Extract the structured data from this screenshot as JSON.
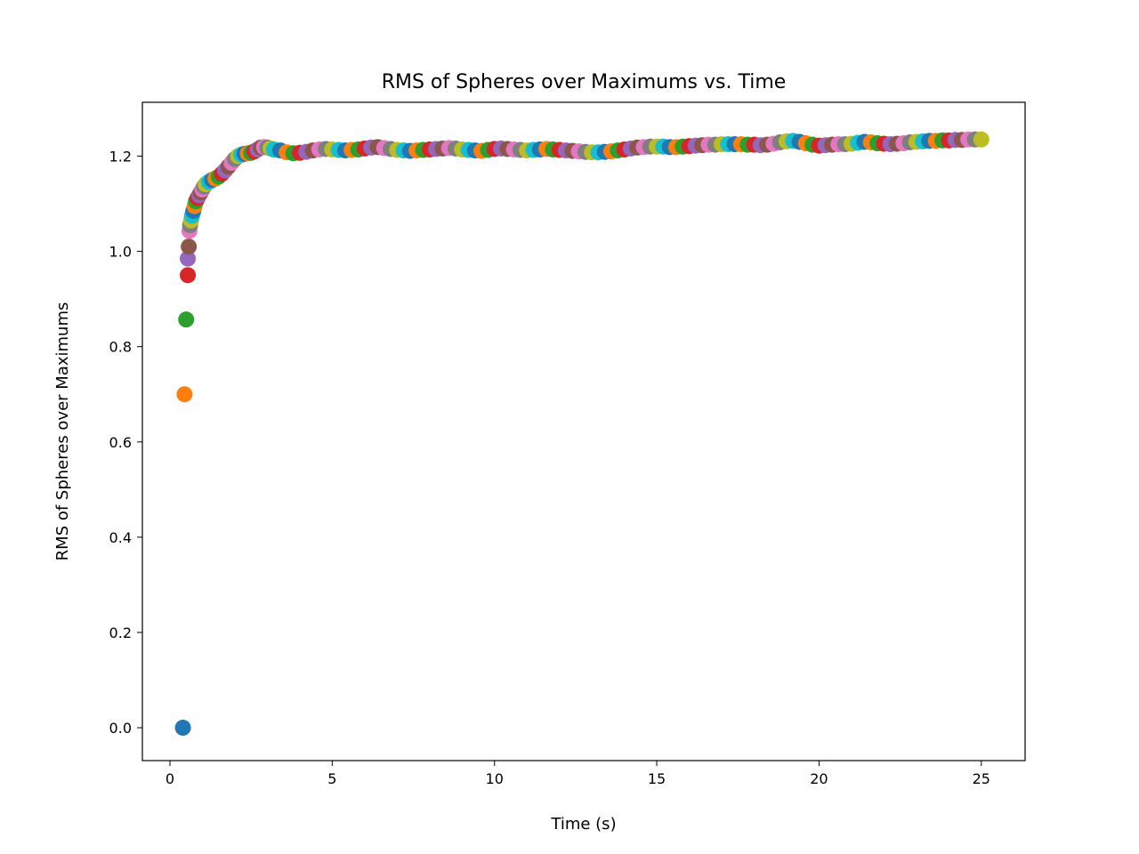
{
  "chart_data": {
    "type": "scatter",
    "title": "RMS of Spheres over Maximums vs. Time",
    "xlabel": "Time (s)",
    "ylabel": "RMS of Spheres over Maximums",
    "xlim": [
      -0.85,
      26.35
    ],
    "ylim": [
      -0.069,
      1.313
    ],
    "x_ticks": [
      0,
      5,
      10,
      15,
      20,
      25
    ],
    "x_tick_labels": [
      "0",
      "5",
      "10",
      "15",
      "20",
      "25"
    ],
    "y_ticks": [
      0.0,
      0.2,
      0.4,
      0.6,
      0.8,
      1.0,
      1.2
    ],
    "y_tick_labels": [
      "0.0",
      "0.2",
      "0.4",
      "0.6",
      "0.8",
      "1.0",
      "1.2"
    ],
    "grid": false,
    "legend": "none",
    "color_cycle": [
      "#1f77b4",
      "#ff7f0e",
      "#2ca02c",
      "#d62728",
      "#9467bd",
      "#8c564b",
      "#e377c2",
      "#7f7f7f",
      "#bcbd22",
      "#17becf"
    ],
    "points": [
      [
        0.4,
        0.0
      ],
      [
        0.45,
        0.7
      ],
      [
        0.5,
        0.857
      ],
      [
        0.55,
        0.95
      ],
      [
        0.55,
        0.985
      ],
      [
        0.58,
        1.01
      ],
      [
        0.6,
        1.043
      ],
      [
        0.62,
        1.055
      ],
      [
        0.65,
        1.065
      ],
      [
        0.68,
        1.075
      ],
      [
        0.72,
        1.085
      ],
      [
        0.76,
        1.095
      ],
      [
        0.8,
        1.105
      ],
      [
        0.85,
        1.112
      ],
      [
        0.9,
        1.118
      ],
      [
        0.95,
        1.124
      ],
      [
        1.0,
        1.13
      ],
      [
        1.05,
        1.136
      ],
      [
        1.1,
        1.141
      ],
      [
        1.2,
        1.146
      ],
      [
        1.3,
        1.15
      ],
      [
        1.4,
        1.153
      ],
      [
        1.5,
        1.157
      ],
      [
        1.6,
        1.163
      ],
      [
        1.7,
        1.17
      ],
      [
        1.8,
        1.178
      ],
      [
        1.9,
        1.186
      ],
      [
        2.0,
        1.194
      ],
      [
        2.1,
        1.2
      ],
      [
        2.2,
        1.203
      ],
      [
        2.3,
        1.205
      ],
      [
        2.4,
        1.206
      ],
      [
        2.5,
        1.207
      ],
      [
        2.6,
        1.21
      ],
      [
        2.7,
        1.214
      ],
      [
        2.8,
        1.218
      ],
      [
        2.9,
        1.219
      ],
      [
        3.0,
        1.218
      ],
      [
        3.1,
        1.216
      ],
      [
        3.2,
        1.214
      ],
      [
        3.4,
        1.212
      ],
      [
        3.6,
        1.208
      ],
      [
        3.8,
        1.206
      ],
      [
        4.0,
        1.207
      ],
      [
        4.2,
        1.209
      ],
      [
        4.4,
        1.212
      ],
      [
        4.6,
        1.214
      ],
      [
        4.8,
        1.215
      ],
      [
        5.0,
        1.214
      ],
      [
        5.2,
        1.213
      ],
      [
        5.4,
        1.212
      ],
      [
        5.6,
        1.213
      ],
      [
        5.8,
        1.214
      ],
      [
        6.0,
        1.216
      ],
      [
        6.2,
        1.218
      ],
      [
        6.4,
        1.219
      ],
      [
        6.6,
        1.217
      ],
      [
        6.8,
        1.215
      ],
      [
        7.0,
        1.213
      ],
      [
        7.2,
        1.212
      ],
      [
        7.4,
        1.211
      ],
      [
        7.6,
        1.212
      ],
      [
        7.8,
        1.213
      ],
      [
        8.0,
        1.214
      ],
      [
        8.2,
        1.215
      ],
      [
        8.4,
        1.216
      ],
      [
        8.6,
        1.217
      ],
      [
        8.8,
        1.216
      ],
      [
        9.0,
        1.214
      ],
      [
        9.2,
        1.213
      ],
      [
        9.4,
        1.212
      ],
      [
        9.6,
        1.211
      ],
      [
        9.8,
        1.213
      ],
      [
        10.0,
        1.215
      ],
      [
        10.2,
        1.216
      ],
      [
        10.4,
        1.215
      ],
      [
        10.6,
        1.214
      ],
      [
        10.8,
        1.213
      ],
      [
        11.0,
        1.212
      ],
      [
        11.2,
        1.213
      ],
      [
        11.4,
        1.214
      ],
      [
        11.6,
        1.215
      ],
      [
        11.8,
        1.214
      ],
      [
        12.0,
        1.213
      ],
      [
        12.2,
        1.212
      ],
      [
        12.4,
        1.211
      ],
      [
        12.6,
        1.21
      ],
      [
        12.8,
        1.209
      ],
      [
        13.0,
        1.208
      ],
      [
        13.2,
        1.208
      ],
      [
        13.4,
        1.209
      ],
      [
        13.6,
        1.21
      ],
      [
        13.8,
        1.212
      ],
      [
        14.0,
        1.214
      ],
      [
        14.2,
        1.216
      ],
      [
        14.4,
        1.218
      ],
      [
        14.6,
        1.219
      ],
      [
        14.8,
        1.22
      ],
      [
        15.0,
        1.22
      ],
      [
        15.2,
        1.22
      ],
      [
        15.4,
        1.219
      ],
      [
        15.6,
        1.219
      ],
      [
        15.8,
        1.22
      ],
      [
        16.0,
        1.221
      ],
      [
        16.2,
        1.222
      ],
      [
        16.4,
        1.223
      ],
      [
        16.6,
        1.224
      ],
      [
        16.8,
        1.224
      ],
      [
        17.0,
        1.225
      ],
      [
        17.2,
        1.225
      ],
      [
        17.4,
        1.225
      ],
      [
        17.6,
        1.225
      ],
      [
        17.8,
        1.224
      ],
      [
        18.0,
        1.224
      ],
      [
        18.2,
        1.223
      ],
      [
        18.4,
        1.224
      ],
      [
        18.6,
        1.226
      ],
      [
        18.8,
        1.229
      ],
      [
        19.0,
        1.231
      ],
      [
        19.2,
        1.232
      ],
      [
        19.4,
        1.23
      ],
      [
        19.6,
        1.227
      ],
      [
        19.8,
        1.224
      ],
      [
        20.0,
        1.222
      ],
      [
        20.2,
        1.223
      ],
      [
        20.4,
        1.224
      ],
      [
        20.6,
        1.225
      ],
      [
        20.8,
        1.225
      ],
      [
        21.0,
        1.226
      ],
      [
        21.2,
        1.228
      ],
      [
        21.4,
        1.23
      ],
      [
        21.6,
        1.229
      ],
      [
        21.8,
        1.227
      ],
      [
        22.0,
        1.226
      ],
      [
        22.2,
        1.225
      ],
      [
        22.4,
        1.226
      ],
      [
        22.6,
        1.227
      ],
      [
        22.8,
        1.229
      ],
      [
        23.0,
        1.23
      ],
      [
        23.2,
        1.231
      ],
      [
        23.4,
        1.232
      ],
      [
        23.6,
        1.232
      ],
      [
        23.8,
        1.233
      ],
      [
        24.0,
        1.233
      ],
      [
        24.2,
        1.234
      ],
      [
        24.4,
        1.234
      ],
      [
        24.6,
        1.235
      ],
      [
        24.8,
        1.235
      ],
      [
        25.0,
        1.235
      ]
    ]
  }
}
